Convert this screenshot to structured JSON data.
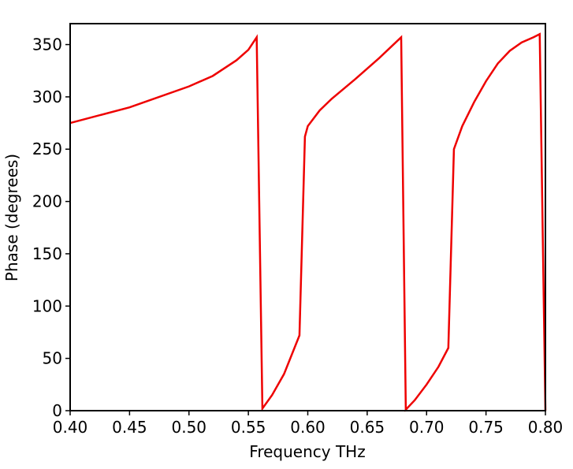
{
  "chart_data": {
    "type": "line",
    "xlabel": "Frequency THz",
    "ylabel": "Phase (degrees)",
    "series": [
      {
        "color": "#ee0000",
        "x": [
          0.4,
          0.45,
          0.5,
          0.52,
          0.54,
          0.55,
          0.557,
          0.5618,
          0.57,
          0.58,
          0.593,
          0.5976,
          0.6,
          0.61,
          0.62,
          0.64,
          0.66,
          0.6786,
          0.6825,
          0.69,
          0.7,
          0.71,
          0.7183,
          0.723,
          0.73,
          0.74,
          0.75,
          0.76,
          0.77,
          0.78,
          0.79,
          0.7952,
          0.8
        ],
        "values": [
          275,
          290,
          310,
          320,
          335,
          345,
          357,
          2,
          15,
          35,
          72,
          262,
          272,
          287,
          298,
          317,
          337,
          357,
          1,
          10,
          25,
          42,
          60,
          250,
          272,
          295,
          315,
          332,
          344,
          352,
          357,
          360,
          0
        ]
      }
    ],
    "xlim": [
      0.4,
      0.8
    ],
    "xticks": [
      {
        "value": 0.4,
        "label": "0.40"
      },
      0.45,
      {
        "value": 0.5,
        "label": "0.50"
      },
      0.55,
      {
        "value": 0.6,
        "label": "0.60"
      },
      0.65,
      {
        "value": 0.7,
        "label": "0.70"
      },
      0.75,
      {
        "value": 0.8,
        "label": "0.80"
      }
    ],
    "ylim": [
      0,
      370
    ],
    "yticks": [
      0,
      50,
      100,
      150,
      200,
      250,
      300,
      350
    ]
  }
}
